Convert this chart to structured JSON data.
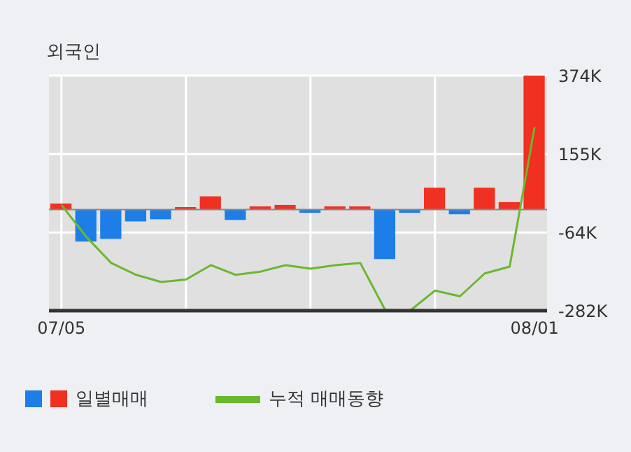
{
  "chart_data": {
    "type": "bar",
    "title": "외국인",
    "categories": [
      "07/05",
      null,
      null,
      null,
      null,
      null,
      null,
      null,
      null,
      null,
      null,
      null,
      null,
      null,
      null,
      null,
      null,
      null,
      null,
      "08/01"
    ],
    "series": [
      {
        "name": "일별매매",
        "colors": [
          "#f03020",
          "#1e7ee8",
          "#1e7ee8",
          "#1e7ee8",
          "#1e7ee8",
          "#f03020",
          "#f03020",
          "#1e7ee8",
          "#f03020",
          "#f03020",
          "#1e7ee8",
          "#f03020",
          "#f03020",
          "#1e7ee8",
          "#1e7ee8",
          "#f03020",
          "#1e7ee8",
          "#f03020",
          "#f03020",
          "#f03020"
        ],
        "values": [
          17000,
          -89000,
          -82000,
          -33000,
          -27000,
          7000,
          37000,
          -29000,
          9000,
          13000,
          -9000,
          9000,
          9000,
          -138000,
          -9000,
          61000,
          -13000,
          61000,
          21000,
          374000
        ]
      },
      {
        "type": "line",
        "name": "누적 매매동향",
        "color": "#6ab82e",
        "values": [
          13000,
          -76000,
          -149000,
          -182000,
          -202000,
          -195000,
          -155000,
          -182000,
          -173000,
          -155000,
          -165000,
          -155000,
          -149000,
          -280000,
          -282000,
          -226000,
          -242000,
          -178000,
          -159000,
          230000
        ]
      }
    ],
    "ylim": [
      -282000,
      374000
    ],
    "yticks": [
      {
        "value": 374000,
        "label": "374K"
      },
      {
        "value": 155000,
        "label": "155K"
      },
      {
        "value": -64000,
        "label": "-64K"
      },
      {
        "value": -282000,
        "label": "-282K"
      }
    ],
    "ref_lines": [
      {
        "axis": "y",
        "value": 0,
        "color": "#888888"
      }
    ],
    "grid": true,
    "legend": "bottom"
  }
}
